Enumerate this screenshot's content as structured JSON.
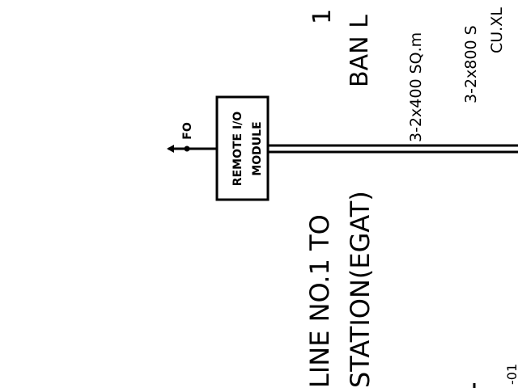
{
  "drawing": {
    "title_frag_1": "1 1",
    "title_frag_2": "BAN L",
    "cable_1": "3-2x400 SQ.m",
    "cable_2": "3-2x800 S",
    "cable_2_sub": "CU.XL",
    "module_label_1": "REMOTE I/O",
    "module_label_2": "MODULE",
    "fiber_label": "FO",
    "line_desc_1": "LINE NO.1 TO",
    "line_desc_2": "STATION(EGAT)",
    "edge_frag": "-01"
  },
  "colors": {
    "ink": "#000000",
    "paper": "#ffffff"
  }
}
